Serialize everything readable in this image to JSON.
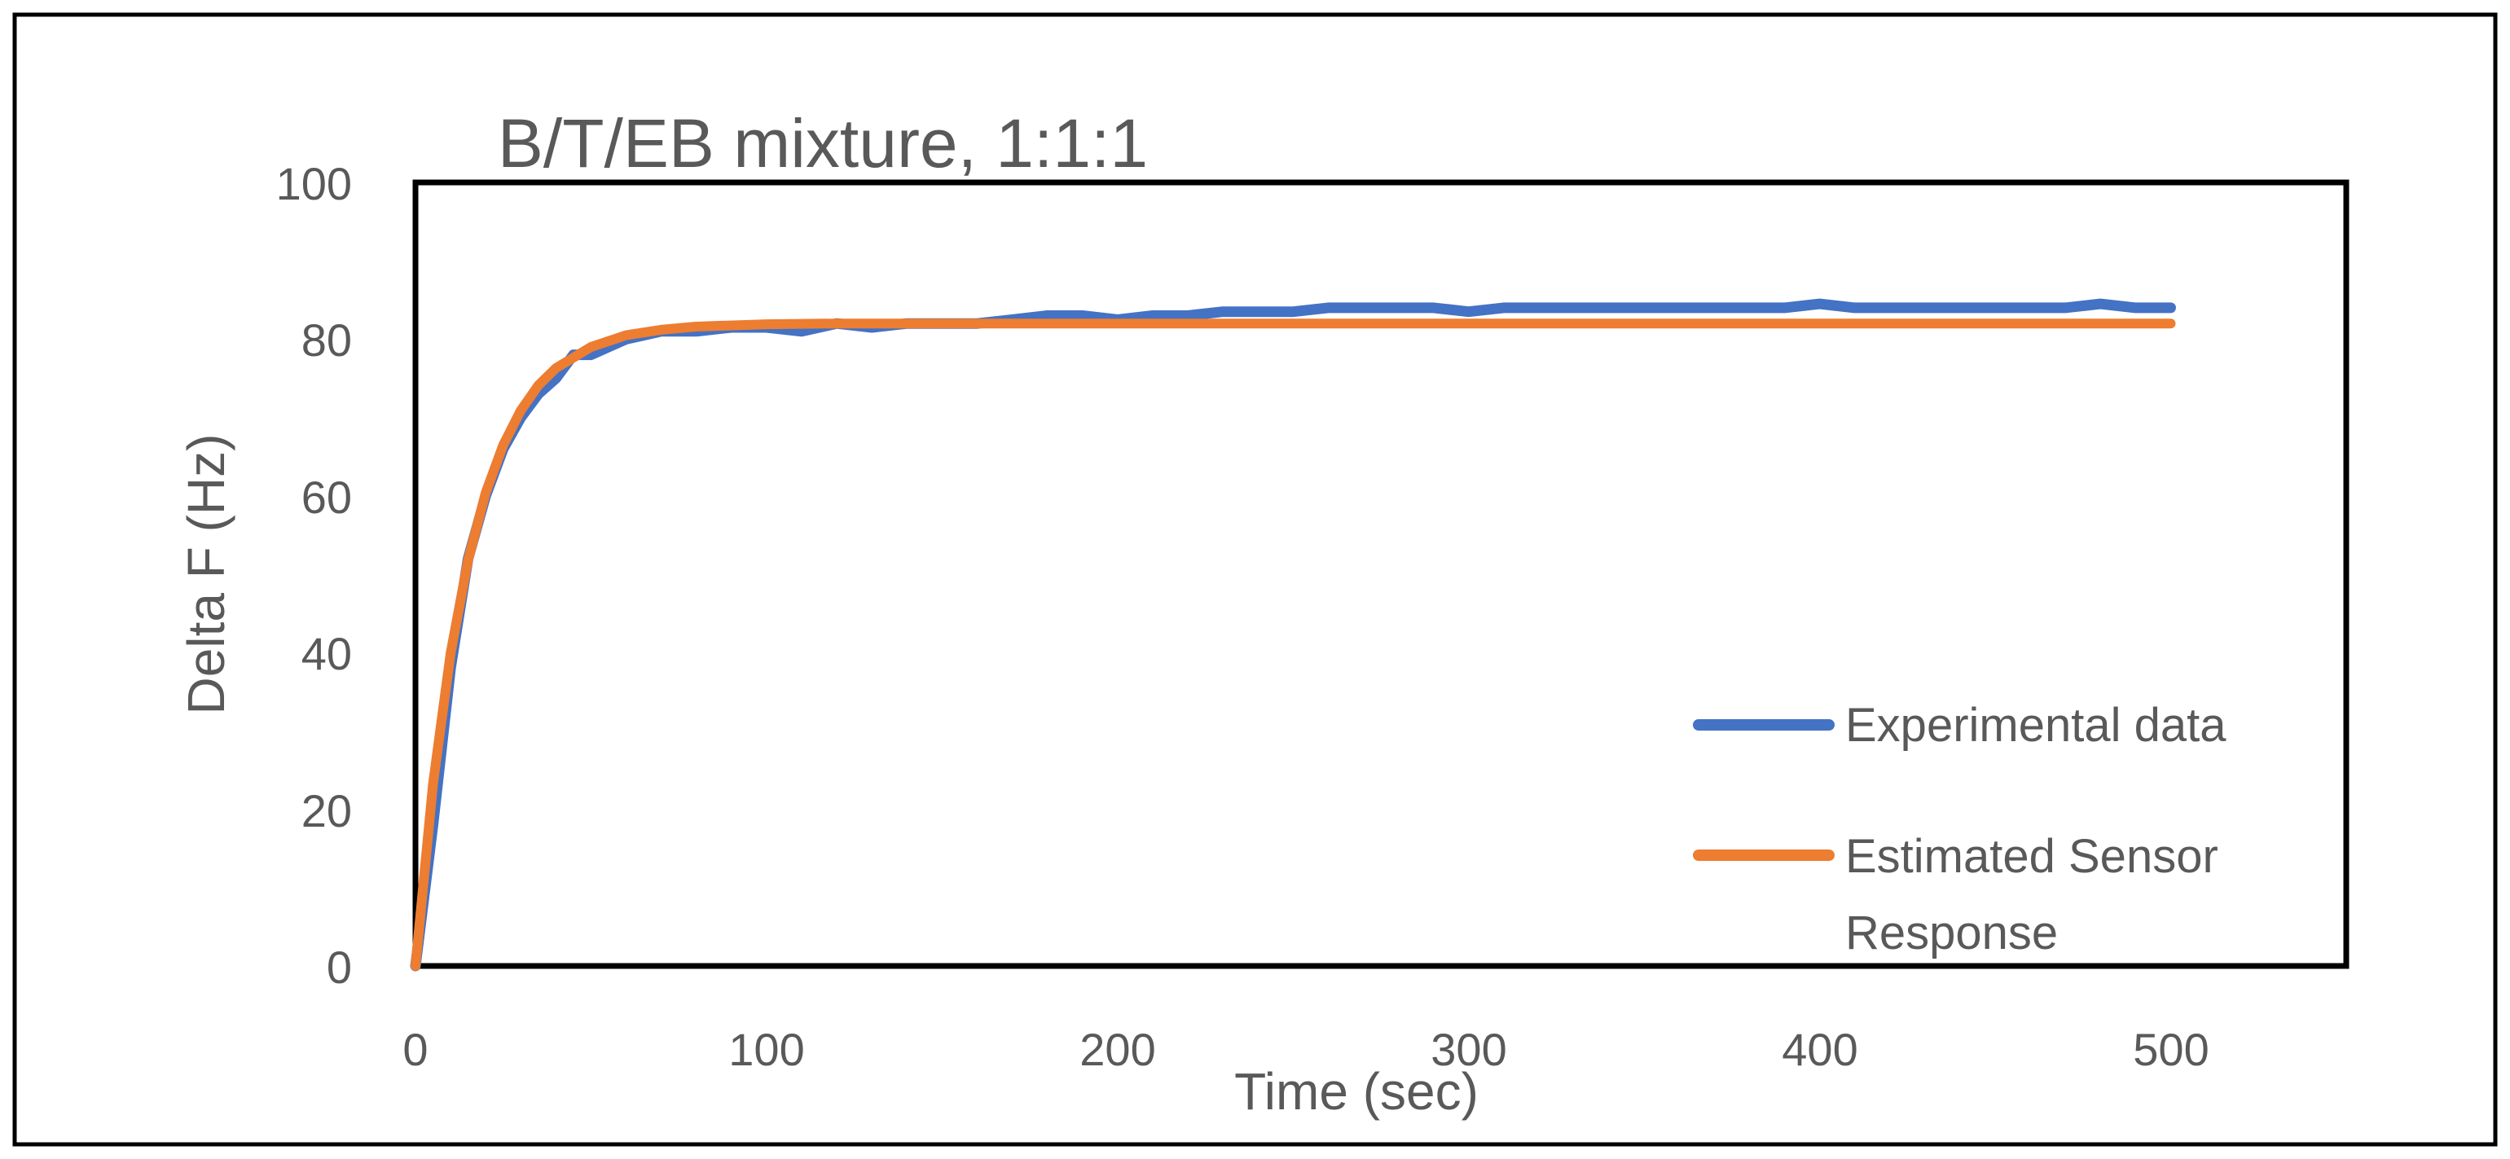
{
  "chart_data": {
    "type": "line",
    "title": "B/T/EB mixture, 1:1:1",
    "xlabel": "Time (sec)",
    "ylabel": "Delta F (Hz)",
    "xlim": [
      0,
      550
    ],
    "ylim": [
      0,
      100
    ],
    "x_ticks": [
      "0",
      "100",
      "200",
      "300",
      "400",
      "500"
    ],
    "y_ticks": [
      "0",
      "20",
      "40",
      "60",
      "80",
      "100"
    ],
    "grid": false,
    "legend_position": "bottom-right",
    "series": [
      {
        "name": "Experimental data",
        "color": "#4472C4",
        "x": [
          0,
          5,
          10,
          15,
          20,
          25,
          30,
          35,
          40,
          45,
          50,
          55,
          60,
          65,
          70,
          80,
          90,
          100,
          110,
          120,
          130,
          140,
          150,
          160,
          170,
          180,
          190,
          200,
          210,
          220,
          230,
          240,
          250,
          260,
          270,
          280,
          290,
          300,
          310,
          320,
          330,
          340,
          350,
          360,
          370,
          380,
          390,
          400,
          410,
          420,
          430,
          440,
          450,
          460,
          470,
          480,
          490,
          500
        ],
        "values": [
          0,
          18,
          38,
          52,
          60,
          66,
          70,
          73,
          75,
          78,
          78,
          79,
          80,
          80.5,
          81,
          81,
          81.5,
          81.5,
          81,
          82,
          81.5,
          82,
          82,
          82,
          82.5,
          83,
          83,
          82.5,
          83,
          83,
          83.5,
          83.5,
          83.5,
          84,
          84,
          84,
          84,
          83.5,
          84,
          84,
          84,
          84,
          84,
          84,
          84,
          84,
          84,
          84.5,
          84,
          84,
          84,
          84,
          84,
          84,
          84,
          84.5,
          84,
          84
        ]
      },
      {
        "name": "Estimated Sensor Response",
        "color": "#ED7D31",
        "function": "82 * (1 - exp(-t / 15))",
        "x": [
          0,
          5,
          10,
          15,
          20,
          25,
          30,
          35,
          40,
          50,
          60,
          70,
          80,
          100,
          120,
          150,
          200,
          300,
          400,
          500
        ],
        "values": [
          0,
          23.2,
          39.9,
          51.8,
          60.4,
          66.5,
          70.9,
          74.1,
          76.3,
          79.0,
          80.5,
          81.2,
          81.6,
          81.9,
          82.0,
          82.0,
          82.0,
          82.0,
          82.0,
          82.0
        ]
      }
    ]
  }
}
